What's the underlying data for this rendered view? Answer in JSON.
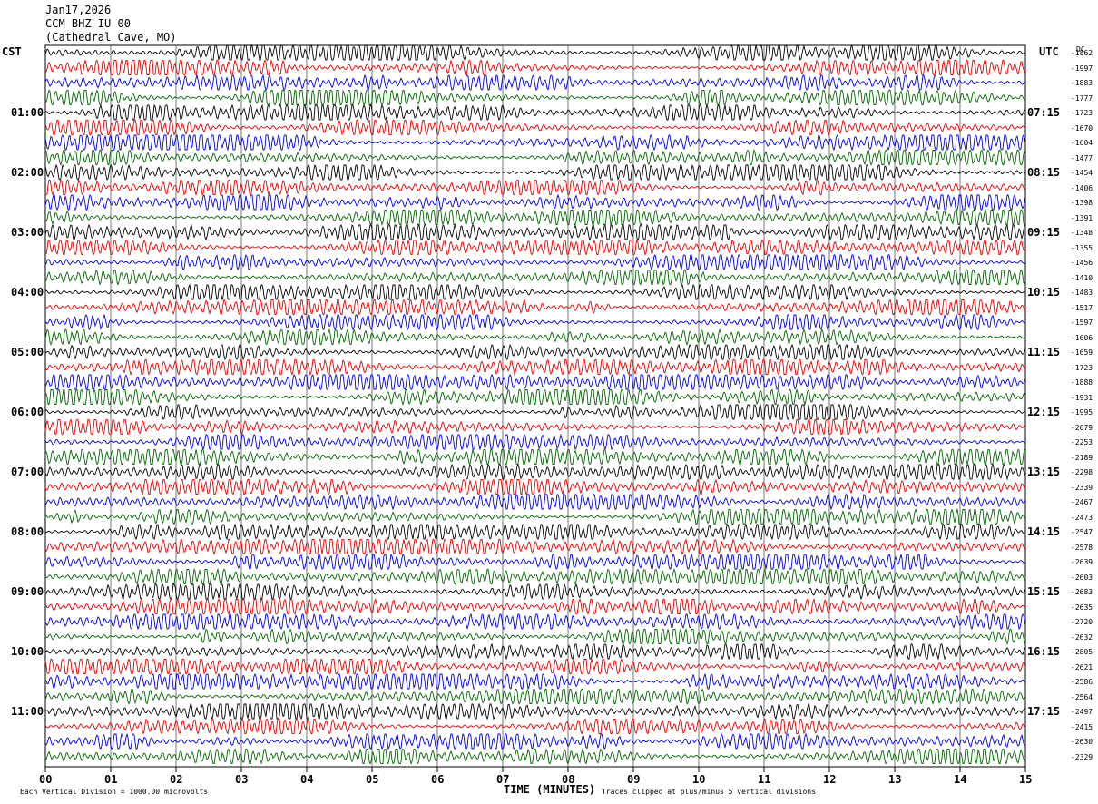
{
  "header": {
    "date": "Jan17,2026",
    "station": "CCM BHZ IU 00",
    "location": "(Cathedral Cave, MO)"
  },
  "left_axis": {
    "title": "CST",
    "labels": [
      "01:00",
      "02:00",
      "03:00",
      "04:00",
      "05:00",
      "06:00",
      "07:00",
      "08:00",
      "09:00",
      "10:00",
      "11:00"
    ]
  },
  "right_axis": {
    "title": "UTC",
    "labels": [
      "07:15",
      "08:15",
      "09:15",
      "10:15",
      "11:15",
      "12:15",
      "13:15",
      "14:15",
      "15:15",
      "16:15",
      "17:15"
    ],
    "dc_label": "DC"
  },
  "footer": {
    "xlabel": "TIME (MINUTES)",
    "scale_note": "Each Vertical Division = 1000.00 microvolts",
    "clip_note": "Traces clipped at plus/minus 5 vertical divisions"
  },
  "colors": {
    "trace_cycle": [
      "#000000",
      "#e00000",
      "#0000d0",
      "#006400"
    ],
    "grid": "#000000",
    "background": "#ffffff"
  },
  "chart_data": {
    "type": "line",
    "title": "CCM BHZ IU 00",
    "xlabel": "TIME (MINUTES)",
    "ylabel": "",
    "xlim": [
      0,
      15
    ],
    "x_ticks": [
      "00",
      "01",
      "02",
      "03",
      "04",
      "05",
      "06",
      "07",
      "08",
      "09",
      "10",
      "11",
      "12",
      "13",
      "14",
      "15"
    ],
    "traces_per_hour": 4,
    "trace_count": 48,
    "minutes_per_trace": 15,
    "grid": true,
    "dc_offsets": [
      -1862,
      -1997,
      -1883,
      -1777,
      -1723,
      -1670,
      -1604,
      -1477,
      -1454,
      -1406,
      -1398,
      -1391,
      -1348,
      -1355,
      -1456,
      -1410,
      -1483,
      -1517,
      -1597,
      -1606,
      -1659,
      -1723,
      -1888,
      -1931,
      -1995,
      -2079,
      -2253,
      -2189,
      -2298,
      -2339,
      -2467,
      -2473,
      -2547,
      -2578,
      -2639,
      -2603,
      -2683,
      -2635,
      -2720,
      -2632,
      -2805,
      -2621,
      -2586,
      -2564,
      -2497,
      -2415,
      -2630,
      -2329
    ]
  }
}
